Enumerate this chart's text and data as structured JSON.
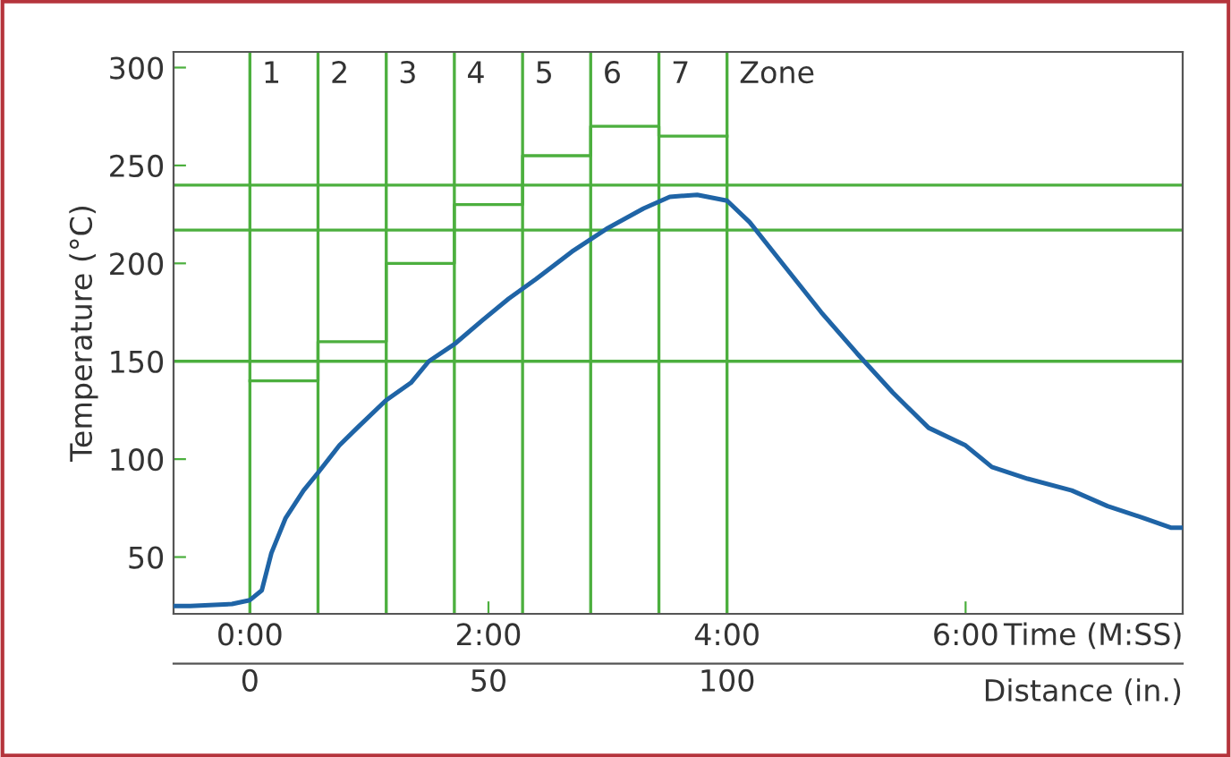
{
  "chart_data": {
    "type": "line",
    "xlabel": "Time (M:SS)",
    "ylabel": "Temperature (°C)",
    "x2label": "Distance (in.)",
    "xlim": [
      -0.64,
      7.82
    ],
    "xticks": [
      {
        "value": 0,
        "label": "0:00"
      },
      {
        "value": 2,
        "label": "2:00"
      },
      {
        "value": 4,
        "label": "4:00"
      },
      {
        "value": 6,
        "label": "6:00"
      }
    ],
    "x2lim": [
      -16,
      195.5
    ],
    "x2ticks": [
      0,
      50,
      100
    ],
    "ylim": [
      21,
      308
    ],
    "yticks": [
      50,
      100,
      150,
      200,
      250,
      300
    ],
    "grid": false,
    "legend": false,
    "series": [
      {
        "color": "#1f64a6",
        "x": [
          -0.64,
          -0.5,
          -0.15,
          0,
          0.1,
          0.18,
          0.3,
          0.45,
          0.57,
          0.75,
          0.9,
          1.14,
          1.35,
          1.5,
          1.72,
          1.95,
          2.17,
          2.4,
          2.7,
          3.0,
          3.3,
          3.52,
          3.75,
          4.0,
          4.19,
          4.49,
          4.79,
          5.09,
          5.39,
          5.69,
          6.0,
          6.22,
          6.52,
          6.89,
          7.19,
          7.49,
          7.72,
          7.82
        ],
        "values": [
          25,
          25,
          26,
          28,
          33,
          52,
          70,
          84,
          93,
          107,
          116,
          130,
          139,
          150,
          159,
          171,
          182,
          192,
          206,
          218,
          228,
          234,
          235,
          232,
          221,
          198,
          175,
          154,
          134,
          116,
          107,
          96,
          90,
          84,
          76,
          70,
          65,
          65
        ]
      },
      {
        "type": "step",
        "color": "#4caf3e",
        "x": [
          0,
          0.571,
          1.143,
          1.714,
          2.286,
          2.857,
          3.429,
          4.0
        ],
        "values": [
          140,
          160,
          200,
          230,
          255,
          270,
          265,
          265
        ]
      }
    ],
    "ref_lines": [
      {
        "axis": "y",
        "value": 240,
        "color": "#4caf3e"
      },
      {
        "axis": "y",
        "value": 217,
        "color": "#4caf3e"
      },
      {
        "axis": "y",
        "value": 150,
        "color": "#4caf3e"
      },
      {
        "axis": "x",
        "value": 0,
        "color": "#4caf3e"
      },
      {
        "axis": "x",
        "value": 0.571,
        "color": "#4caf3e"
      },
      {
        "axis": "x",
        "value": 1.143,
        "color": "#4caf3e"
      },
      {
        "axis": "x",
        "value": 1.714,
        "color": "#4caf3e"
      },
      {
        "axis": "x",
        "value": 2.286,
        "color": "#4caf3e"
      },
      {
        "axis": "x",
        "value": 2.857,
        "color": "#4caf3e"
      },
      {
        "axis": "x",
        "value": 3.429,
        "color": "#4caf3e"
      },
      {
        "axis": "x",
        "value": 4.0,
        "color": "#4caf3e"
      }
    ],
    "annotations": [
      "1",
      "2",
      "3",
      "4",
      "5",
      "6",
      "7",
      "Zone"
    ]
  }
}
